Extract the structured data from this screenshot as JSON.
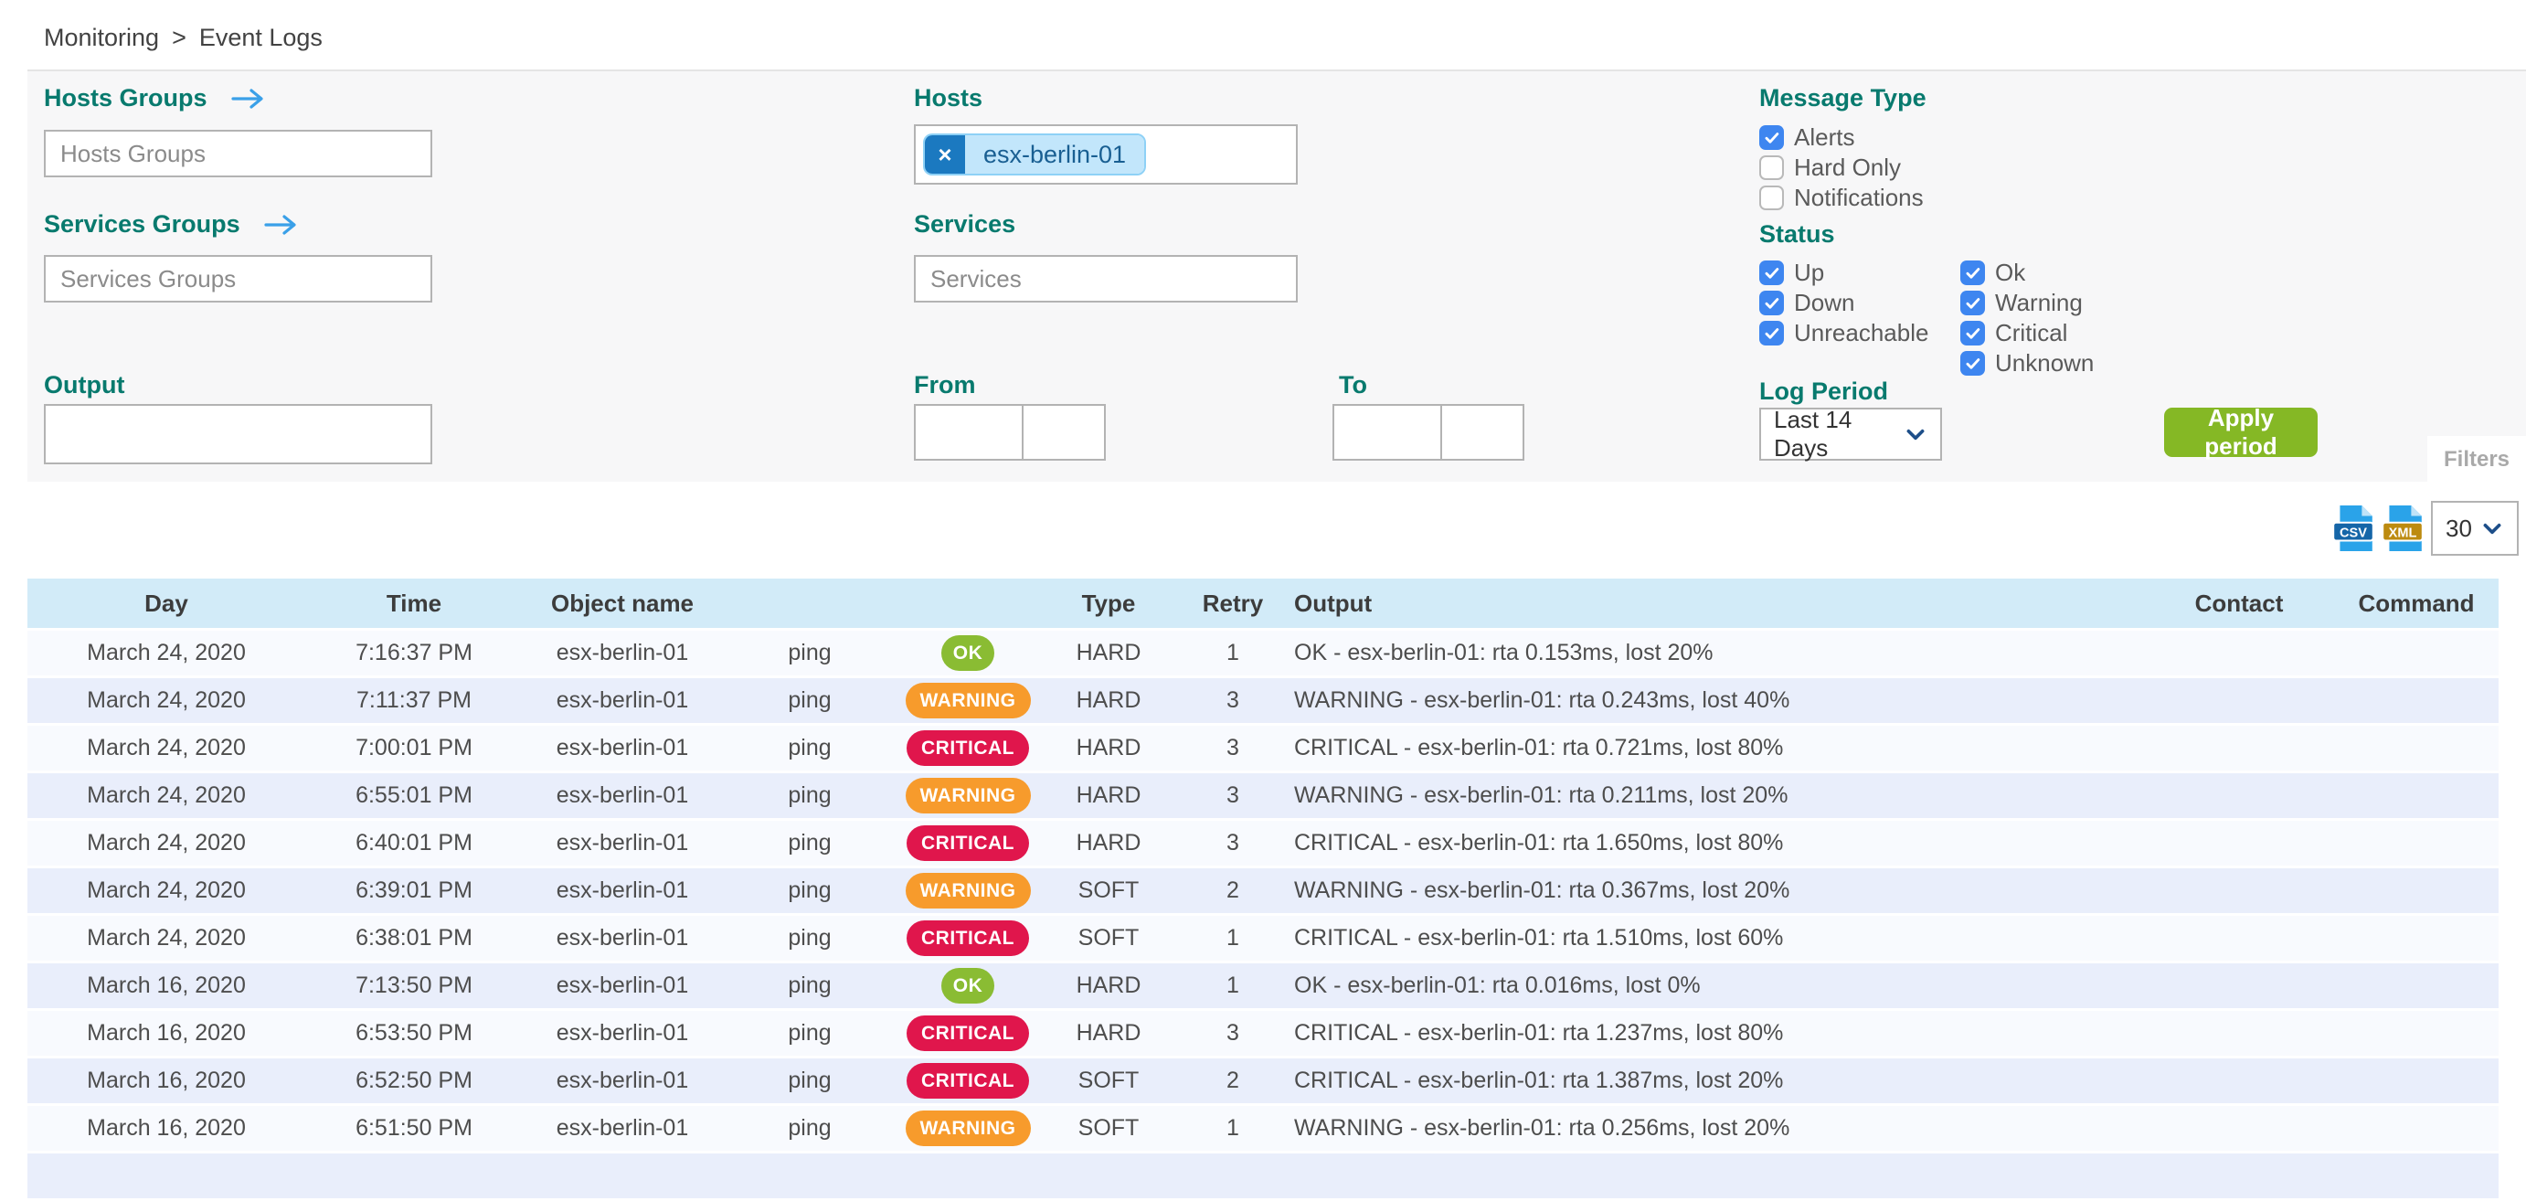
{
  "breadcrumb": {
    "items": [
      "Monitoring",
      "Event Logs"
    ],
    "separator": ">"
  },
  "filters": {
    "hosts_groups": {
      "label": "Hosts Groups",
      "placeholder": "Hosts Groups",
      "value": ""
    },
    "services_groups": {
      "label": "Services Groups",
      "placeholder": "Services Groups",
      "value": ""
    },
    "hosts": {
      "label": "Hosts",
      "chips": [
        "esx-berlin-01"
      ]
    },
    "services": {
      "label": "Services",
      "placeholder": "Services",
      "value": ""
    },
    "output": {
      "label": "Output",
      "value": ""
    },
    "from": {
      "label": "From",
      "date": "",
      "time": ""
    },
    "to": {
      "label": "To",
      "date": "",
      "time": ""
    },
    "message_type": {
      "label": "Message Type",
      "options": [
        {
          "label": "Alerts",
          "checked": true
        },
        {
          "label": "Hard Only",
          "checked": false
        },
        {
          "label": "Notifications",
          "checked": false
        }
      ]
    },
    "status": {
      "label": "Status",
      "col1": [
        {
          "label": "Up",
          "checked": true
        },
        {
          "label": "Down",
          "checked": true
        },
        {
          "label": "Unreachable",
          "checked": true
        }
      ],
      "col2": [
        {
          "label": "Ok",
          "checked": true
        },
        {
          "label": "Warning",
          "checked": true
        },
        {
          "label": "Critical",
          "checked": true
        },
        {
          "label": "Unknown",
          "checked": true
        }
      ]
    },
    "log_period": {
      "label": "Log Period",
      "value": "Last 14 Days"
    },
    "apply_button": "Apply period",
    "filters_tab": "Filters"
  },
  "toolbar": {
    "csv_label": "CSV",
    "xml_label": "XML",
    "page_size": "30"
  },
  "table": {
    "columns": [
      "Day",
      "Time",
      "Object name",
      "",
      "",
      "Type",
      "Retry",
      "Output",
      "Contact",
      "Command"
    ],
    "rows": [
      {
        "day": "March 24, 2020",
        "time": "7:16:37 PM",
        "object": "esx-berlin-01",
        "service": "ping",
        "status": "OK",
        "type": "HARD",
        "retry": "1",
        "output": "OK - esx-berlin-01: rta 0.153ms, lost 20%",
        "contact": "",
        "command": ""
      },
      {
        "day": "March 24, 2020",
        "time": "7:11:37 PM",
        "object": "esx-berlin-01",
        "service": "ping",
        "status": "WARNING",
        "type": "HARD",
        "retry": "3",
        "output": "WARNING - esx-berlin-01: rta 0.243ms, lost 40%",
        "contact": "",
        "command": ""
      },
      {
        "day": "March 24, 2020",
        "time": "7:00:01 PM",
        "object": "esx-berlin-01",
        "service": "ping",
        "status": "CRITICAL",
        "type": "HARD",
        "retry": "3",
        "output": "CRITICAL - esx-berlin-01: rta 0.721ms, lost 80%",
        "contact": "",
        "command": ""
      },
      {
        "day": "March 24, 2020",
        "time": "6:55:01 PM",
        "object": "esx-berlin-01",
        "service": "ping",
        "status": "WARNING",
        "type": "HARD",
        "retry": "3",
        "output": "WARNING - esx-berlin-01: rta 0.211ms, lost 20%",
        "contact": "",
        "command": ""
      },
      {
        "day": "March 24, 2020",
        "time": "6:40:01 PM",
        "object": "esx-berlin-01",
        "service": "ping",
        "status": "CRITICAL",
        "type": "HARD",
        "retry": "3",
        "output": "CRITICAL - esx-berlin-01: rta 1.650ms, lost 80%",
        "contact": "",
        "command": ""
      },
      {
        "day": "March 24, 2020",
        "time": "6:39:01 PM",
        "object": "esx-berlin-01",
        "service": "ping",
        "status": "WARNING",
        "type": "SOFT",
        "retry": "2",
        "output": "WARNING - esx-berlin-01: rta 0.367ms, lost 20%",
        "contact": "",
        "command": ""
      },
      {
        "day": "March 24, 2020",
        "time": "6:38:01 PM",
        "object": "esx-berlin-01",
        "service": "ping",
        "status": "CRITICAL",
        "type": "SOFT",
        "retry": "1",
        "output": "CRITICAL - esx-berlin-01: rta 1.510ms, lost 60%",
        "contact": "",
        "command": ""
      },
      {
        "day": "March 16, 2020",
        "time": "7:13:50 PM",
        "object": "esx-berlin-01",
        "service": "ping",
        "status": "OK",
        "type": "HARD",
        "retry": "1",
        "output": "OK - esx-berlin-01: rta 0.016ms, lost 0%",
        "contact": "",
        "command": ""
      },
      {
        "day": "March 16, 2020",
        "time": "6:53:50 PM",
        "object": "esx-berlin-01",
        "service": "ping",
        "status": "CRITICAL",
        "type": "HARD",
        "retry": "3",
        "output": "CRITICAL - esx-berlin-01: rta 1.237ms, lost 80%",
        "contact": "",
        "command": ""
      },
      {
        "day": "March 16, 2020",
        "time": "6:52:50 PM",
        "object": "esx-berlin-01",
        "service": "ping",
        "status": "CRITICAL",
        "type": "SOFT",
        "retry": "2",
        "output": "CRITICAL - esx-berlin-01: rta 1.387ms, lost 20%",
        "contact": "",
        "command": ""
      },
      {
        "day": "March 16, 2020",
        "time": "6:51:50 PM",
        "object": "esx-berlin-01",
        "service": "ping",
        "status": "WARNING",
        "type": "SOFT",
        "retry": "1",
        "output": "WARNING - esx-berlin-01: rta 0.256ms, lost 20%",
        "contact": "",
        "command": ""
      }
    ]
  },
  "colors": {
    "label_teal": "#087a6e",
    "checkbox_blue": "#3e86f0",
    "apply_green": "#85b825",
    "table_header_bg": "#d2ebf8",
    "row_light": "#f8fafe",
    "row_alt": "#e9eefb",
    "badge_ok": "#8abc33",
    "badge_warning": "#f79b2c",
    "badge_critical": "#e0164c",
    "chip_dark_blue": "#1b79c0",
    "chip_light_blue": "#c2e6fb",
    "csv_banner": "#1566a8",
    "xml_banner": "#bd8b10",
    "file_blue": "#2aa3e9"
  }
}
